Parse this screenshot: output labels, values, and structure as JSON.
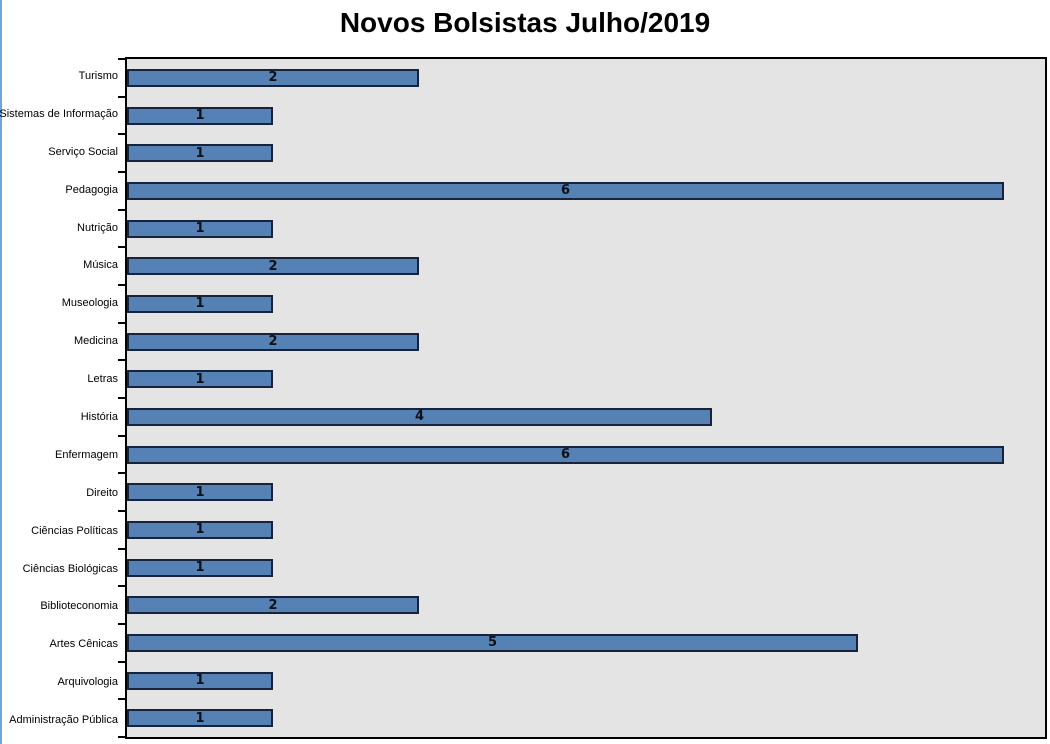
{
  "chart_data": {
    "type": "bar",
    "orientation": "horizontal",
    "title": "Novos Bolsistas Julho/2019",
    "xlabel": "",
    "ylabel": "",
    "categories": [
      "Turismo",
      "Sistemas de Informação",
      "Serviço Social",
      "Pedagogia",
      "Nutrição",
      "Música",
      "Museologia",
      "Medicina",
      "Letras",
      "História",
      "Enfermagem",
      "Direito",
      "Ciências Políticas",
      "Ciências Biológicas",
      "Biblioteconomia",
      "Artes Cênicas",
      "Arquivologia",
      "Administração Pública"
    ],
    "values": [
      2,
      1,
      1,
      6,
      1,
      2,
      1,
      2,
      1,
      4,
      6,
      1,
      1,
      1,
      2,
      5,
      1,
      1
    ],
    "data_labels_shown": true,
    "xlim": [
      0,
      6.28
    ],
    "grid": false,
    "legend": false,
    "tick_style": "category-boundaries",
    "colors": {
      "bar_fill": "#5581B5",
      "bar_border": "#17233B",
      "plot_background": "#E4E4E5",
      "plot_border": "#000000",
      "category_label_text": "#000000",
      "value_label_text": "#0D1117",
      "title_text": "#000000",
      "chart_left_edge": "#6FA6D9",
      "chart_background": "#FFFFFF"
    }
  }
}
